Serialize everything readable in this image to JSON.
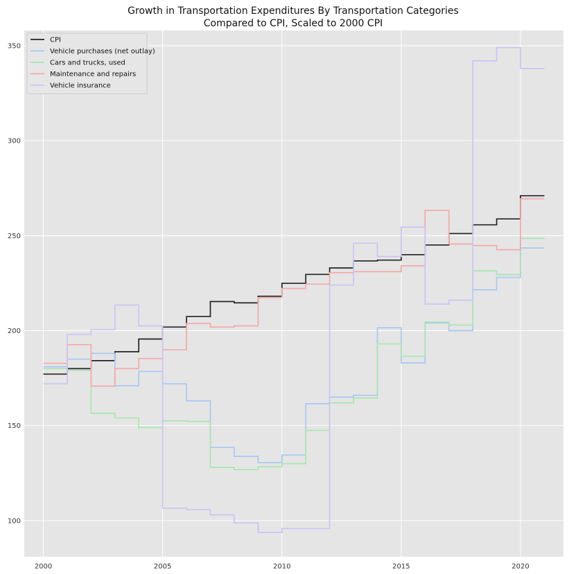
{
  "chart_data": {
    "type": "line",
    "step": "post",
    "title_lines": [
      "Growth in Transportation Expenditures By Transportation Categories",
      "Compared to CPI, Scaled to 2000 CPI"
    ],
    "xlabel": "",
    "ylabel": "",
    "xlim": [
      1999.2,
      2021.8
    ],
    "ylim": [
      81,
      358
    ],
    "x_ticks": [
      2000,
      2005,
      2010,
      2015,
      2020
    ],
    "y_ticks": [
      100,
      150,
      200,
      250,
      300,
      350
    ],
    "grid": true,
    "legend_position": "top-left",
    "background_color": "#e5e5e5",
    "grid_color": "#ffffff",
    "x": [
      2000,
      2001,
      2002,
      2003,
      2004,
      2005,
      2006,
      2007,
      2008,
      2009,
      2010,
      2011,
      2012,
      2013,
      2014,
      2015,
      2016,
      2017,
      2018,
      2019,
      2020,
      2021
    ],
    "series": [
      {
        "name": "CPI",
        "color": "#222222",
        "values": [
          177.1,
          180.0,
          184.2,
          188.9,
          195.6,
          201.9,
          207.4,
          215.3,
          214.6,
          218.1,
          224.9,
          229.6,
          233.0,
          236.7,
          237.1,
          240.0,
          245.1,
          251.1,
          255.7,
          258.8,
          271.0,
          271.0
        ]
      },
      {
        "name": "Vehicle purchases (net outlay)",
        "color": "#a6c8f5",
        "values": [
          181.0,
          185.0,
          188.0,
          171.0,
          178.5,
          172.0,
          163.0,
          138.5,
          133.8,
          130.5,
          134.5,
          161.5,
          165.0,
          166.0,
          201.5,
          183.0,
          204.0,
          200.0,
          221.5,
          228.0,
          243.5,
          243.5
        ]
      },
      {
        "name": "Cars and trucks, used",
        "color": "#a8e6b0",
        "values": [
          180.0,
          179.0,
          156.5,
          154.0,
          149.0,
          152.5,
          152.2,
          128.0,
          126.8,
          128.3,
          130.0,
          147.5,
          162.0,
          164.5,
          193.0,
          186.5,
          204.5,
          203.0,
          231.5,
          229.5,
          248.5,
          248.5
        ]
      },
      {
        "name": "Maintenance and repairs",
        "color": "#f5a8a8",
        "values": [
          182.8,
          192.6,
          170.8,
          180.0,
          185.3,
          189.9,
          203.8,
          201.9,
          202.5,
          217.4,
          222.2,
          224.5,
          230.5,
          231.0,
          231.0,
          234.1,
          263.3,
          245.6,
          244.8,
          242.6,
          269.4,
          269.4
        ]
      },
      {
        "name": "Vehicle insurance",
        "color": "#cdc3f5",
        "values": [
          172.0,
          198.0,
          200.5,
          213.5,
          202.5,
          106.5,
          105.8,
          103.0,
          98.8,
          93.8,
          95.8,
          95.8,
          224.0,
          246.0,
          239.0,
          254.5,
          214.0,
          216.0,
          342.0,
          349.0,
          338.0,
          338.0
        ]
      }
    ]
  }
}
